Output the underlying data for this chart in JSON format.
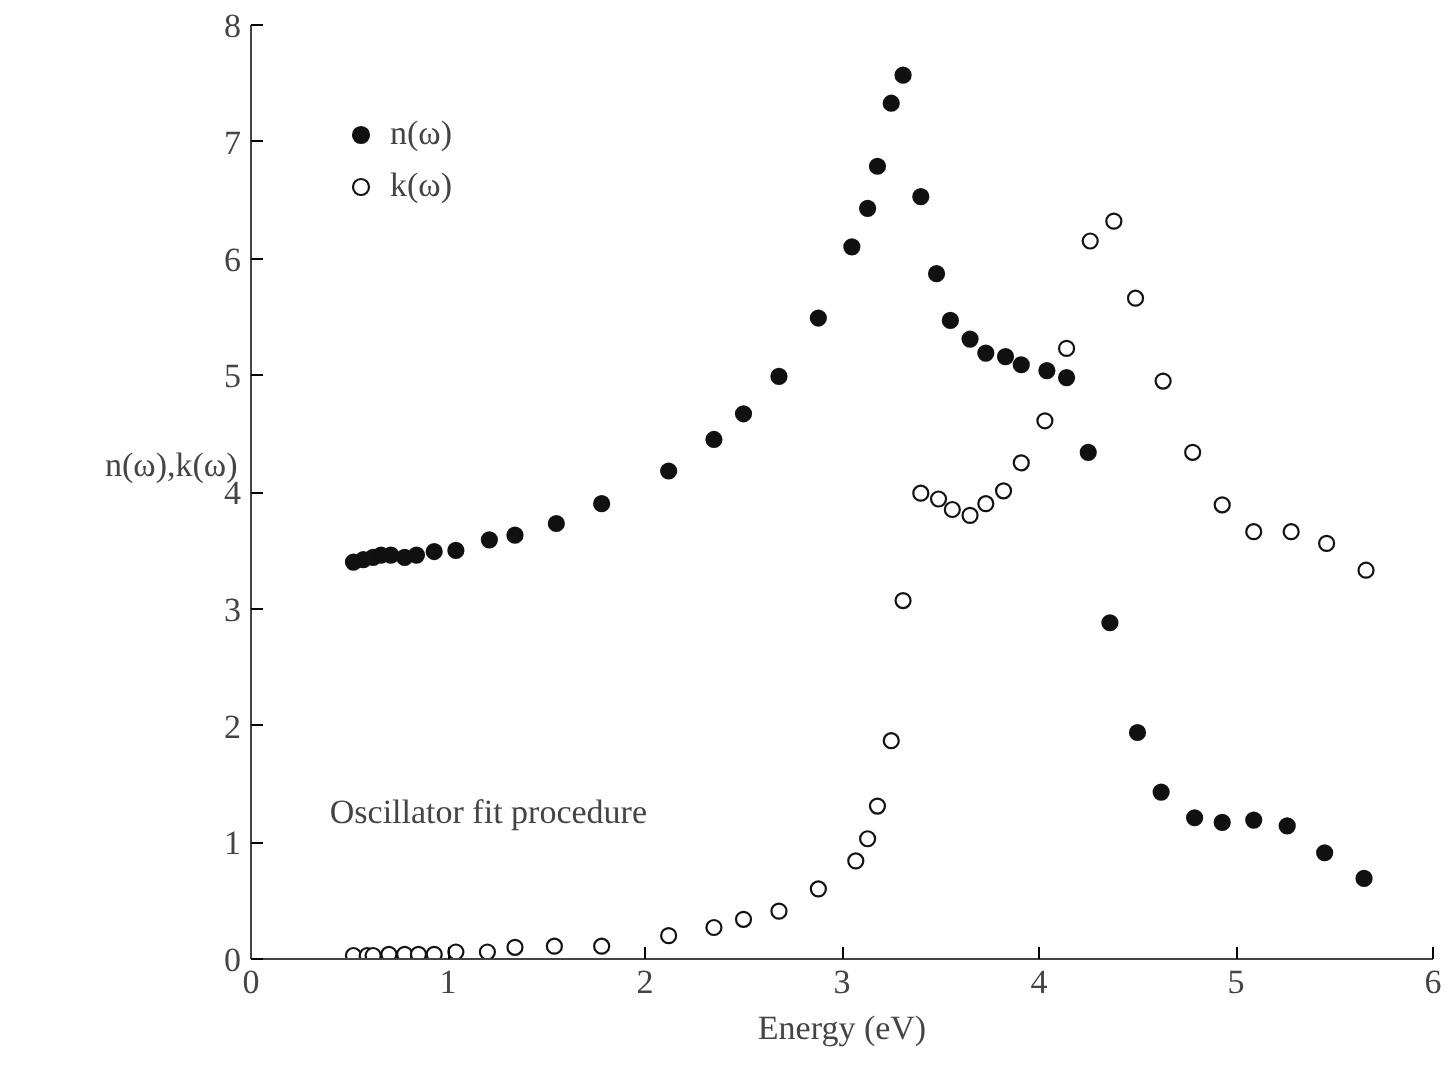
{
  "chart_data": {
    "type": "scatter",
    "xlabel": "Energy (eV)",
    "ylabel": "n(ω),k(ω)",
    "xlim": [
      0,
      6
    ],
    "ylim": [
      0,
      8
    ],
    "xticks": [
      0,
      1,
      2,
      3,
      4,
      5,
      6
    ],
    "yticks": [
      0,
      1,
      2,
      3,
      4,
      5,
      6,
      7,
      8
    ],
    "grid": false,
    "legend": "top left",
    "annotations": [
      "Oscillator fit procedure"
    ],
    "series": [
      {
        "name": "n(ω)",
        "color": "#111111",
        "marker": "circle",
        "x": [
          0.52,
          0.57,
          0.62,
          0.66,
          0.71,
          0.78,
          0.84,
          0.93,
          1.04,
          1.21,
          1.34,
          1.55,
          1.78,
          2.12,
          2.35,
          2.5,
          2.68,
          2.88,
          3.05,
          3.13,
          3.18,
          3.25,
          3.31,
          3.4,
          3.48,
          3.55,
          3.65,
          3.73,
          3.83,
          3.91,
          4.04,
          4.14,
          4.25,
          4.36,
          4.5,
          4.62,
          4.79,
          4.93,
          5.09,
          5.26,
          5.45,
          5.65
        ],
        "values": [
          3.4,
          3.42,
          3.44,
          3.46,
          3.46,
          3.44,
          3.46,
          3.49,
          3.5,
          3.59,
          3.63,
          3.73,
          3.9,
          4.18,
          4.45,
          4.67,
          4.99,
          5.49,
          6.1,
          6.43,
          6.79,
          7.33,
          7.57,
          6.53,
          5.87,
          5.47,
          5.31,
          5.19,
          5.16,
          5.09,
          5.04,
          4.98,
          4.34,
          2.88,
          1.94,
          1.43,
          1.21,
          1.17,
          1.19,
          1.14,
          0.91,
          0.69
        ]
      },
      {
        "name": "k(ω)",
        "color": "#111111",
        "marker": "circle_open",
        "x": [
          0.52,
          0.59,
          0.62,
          0.7,
          0.78,
          0.85,
          0.93,
          1.04,
          1.2,
          1.34,
          1.54,
          1.78,
          2.12,
          2.35,
          2.5,
          2.68,
          2.88,
          3.07,
          3.13,
          3.18,
          3.25,
          3.31,
          3.4,
          3.49,
          3.56,
          3.65,
          3.73,
          3.82,
          3.91,
          4.03,
          4.14,
          4.26,
          4.38,
          4.49,
          4.63,
          4.78,
          4.93,
          5.09,
          5.28,
          5.46,
          5.66
        ],
        "values": [
          0.03,
          0.03,
          0.03,
          0.04,
          0.04,
          0.04,
          0.04,
          0.06,
          0.06,
          0.1,
          0.11,
          0.11,
          0.2,
          0.27,
          0.34,
          0.41,
          0.6,
          0.84,
          1.03,
          1.31,
          1.87,
          3.07,
          3.99,
          3.94,
          3.85,
          3.8,
          3.9,
          4.01,
          4.25,
          4.61,
          5.23,
          6.15,
          6.32,
          5.66,
          4.95,
          4.34,
          3.89,
          3.66,
          3.66,
          3.56,
          3.33
        ]
      }
    ]
  }
}
